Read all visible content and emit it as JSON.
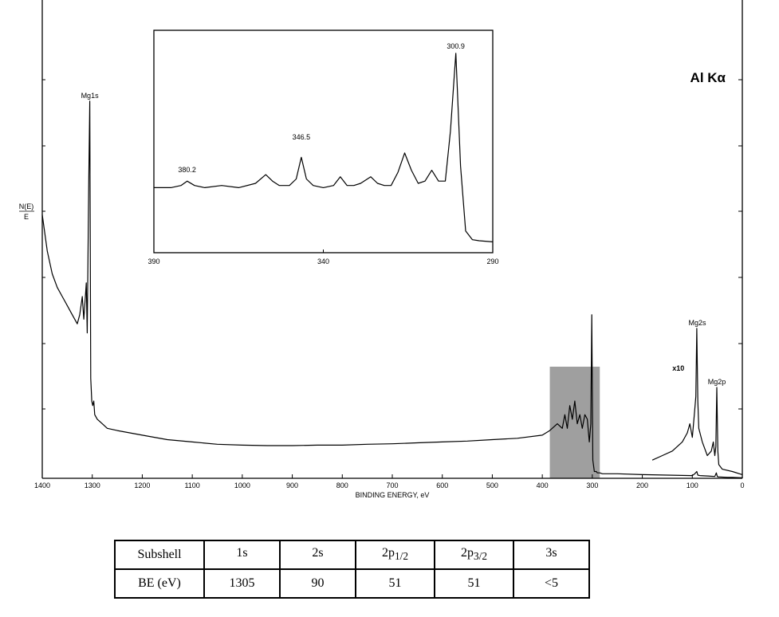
{
  "chart_data": [
    {
      "type": "line",
      "title": "Al Kα",
      "ylabel_num": "N(E)",
      "ylabel_den": "E",
      "xlabel": "BINDING ENERGY, eV",
      "xlim": [
        1400,
        0
      ],
      "ylim": [
        0,
        100
      ],
      "xticks": [
        "1400",
        "1300",
        "1200",
        "1100",
        "1000",
        "900",
        "800",
        "700",
        "600",
        "500",
        "400",
        "300",
        "200",
        "100",
        "0"
      ],
      "highlight_range": [
        385,
        285
      ],
      "annotations": [
        {
          "text": "Mg1s",
          "x": 1305,
          "y": 83
        },
        {
          "text": "Mg2s",
          "x": 90,
          "y": 33
        },
        {
          "text": "Mg2p",
          "x": 51,
          "y": 20
        },
        {
          "text": "x10",
          "x": 128,
          "y": 23
        }
      ],
      "series": [
        {
          "x": [
            1400,
            1390,
            1380,
            1370,
            1360,
            1350,
            1340,
            1330,
            1325,
            1320,
            1317,
            1315,
            1312,
            1310,
            1307,
            1305,
            1303,
            1301,
            1299,
            1297,
            1295,
            1290,
            1280,
            1270,
            1250,
            1200,
            1150,
            1100,
            1050,
            1000,
            950,
            900,
            850,
            800,
            750,
            700,
            650,
            600,
            550,
            500,
            450,
            400,
            385,
            370,
            360,
            355,
            350,
            345,
            340,
            335,
            330,
            325,
            320,
            315,
            310,
            306,
            303,
            301,
            299,
            296,
            292,
            290,
            285,
            280,
            250,
            200,
            150,
            100,
            95,
            91,
            89,
            85,
            70,
            55,
            52,
            50,
            48,
            45,
            30,
            20,
            0
          ],
          "y": [
            58,
            50,
            45,
            42,
            40,
            38,
            36,
            34,
            36,
            40,
            35,
            38,
            43,
            32,
            65,
            83,
            22,
            17,
            16,
            17,
            14,
            13,
            12,
            11,
            10.5,
            9.5,
            8.5,
            8,
            7.5,
            7.3,
            7.2,
            7.2,
            7.3,
            7.3,
            7.5,
            7.6,
            7.8,
            8,
            8.2,
            8.5,
            8.8,
            9.5,
            10.5,
            12,
            11,
            14,
            11,
            16,
            13,
            17,
            12,
            14,
            11,
            14,
            13,
            8,
            12,
            36,
            4,
            1.5,
            1.5,
            1.2,
            1.2,
            1,
            1,
            0.8,
            0.7,
            0.6,
            1,
            1.5,
            0.7,
            0.6,
            0.5,
            0.4,
            1.2,
            0.4,
            0.3,
            0.3,
            0.2,
            0.2,
            0.1
          ]
        },
        {
          "x": [
            180,
            160,
            140,
            120,
            110,
            105,
            100,
            96,
            93,
            91,
            89,
            87,
            80,
            70,
            62,
            58,
            55,
            53,
            51,
            49,
            47,
            40,
            20,
            0
          ],
          "y": [
            4,
            5,
            6,
            8,
            10,
            12,
            9,
            14,
            18,
            33,
            17,
            11,
            8,
            5,
            6,
            8,
            5,
            7,
            20,
            6,
            3,
            2,
            1.5,
            0.8
          ]
        }
      ]
    },
    {
      "type": "line",
      "xlim": [
        390,
        290
      ],
      "ylim": [
        0,
        100
      ],
      "xticks": [
        "390",
        "340",
        "290"
      ],
      "annotations": [
        {
          "text": "380.2",
          "x": 380.2,
          "y": 35
        },
        {
          "text": "346.5",
          "x": 346.5,
          "y": 50
        },
        {
          "text": "300.9",
          "x": 300.9,
          "y": 92
        }
      ],
      "series": [
        {
          "x": [
            390,
            385,
            382,
            380.2,
            378,
            375,
            370,
            365,
            360,
            357,
            355,
            353,
            350,
            348,
            346.5,
            345,
            343,
            340,
            337,
            335,
            333,
            331,
            329,
            326,
            324,
            322,
            320,
            318,
            316,
            314,
            312,
            310,
            308,
            306,
            304,
            302.5,
            300.9,
            299.5,
            298,
            296,
            294,
            290
          ],
          "y": [
            30,
            30,
            31,
            33,
            31,
            30,
            31,
            30,
            32,
            36,
            33,
            31,
            31,
            34,
            44,
            34,
            31,
            30,
            31,
            35,
            31,
            31,
            32,
            35,
            32,
            31,
            31,
            37,
            46,
            38,
            32,
            33,
            38,
            33,
            33,
            56,
            92,
            40,
            10,
            6,
            5.5,
            5
          ]
        }
      ]
    }
  ],
  "table": {
    "header": {
      "label": "Subshell",
      "cols": [
        {
          "main": "1s",
          "sub": ""
        },
        {
          "main": "2s",
          "sub": ""
        },
        {
          "main": "2p",
          "sub": "1/2"
        },
        {
          "main": "2p",
          "sub": "3/2"
        },
        {
          "main": "3s",
          "sub": ""
        }
      ]
    },
    "row": {
      "label": "BE (eV)",
      "values": [
        "1305",
        "90",
        "51",
        "51",
        "<5"
      ]
    }
  }
}
